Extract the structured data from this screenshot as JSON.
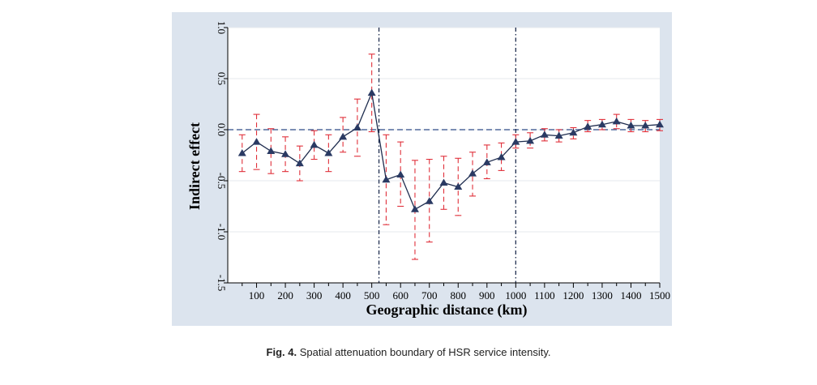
{
  "chart_data": {
    "type": "line",
    "title": "",
    "xlabel": "Geographic distance (km)",
    "ylabel": "Indirect effect",
    "xlim": [
      0,
      1500
    ],
    "ylim": [
      -1.5,
      1.0
    ],
    "xticks": [
      "100",
      "200",
      "300",
      "400",
      "500",
      "600",
      "700",
      "800",
      "900",
      "1000",
      "1100",
      "1200",
      "1300",
      "1400",
      "1500"
    ],
    "yticks": [
      "-1.5",
      "-1.0",
      "-0.5",
      "0.0",
      "0.5",
      "1.0"
    ],
    "reference_lines": {
      "horizontal_y": 0,
      "vertical_x": [
        525,
        1000
      ]
    },
    "series": [
      {
        "name": "Indirect effect",
        "x": [
          50,
          100,
          150,
          200,
          250,
          300,
          350,
          400,
          450,
          500,
          550,
          600,
          650,
          700,
          750,
          800,
          850,
          900,
          950,
          1000,
          1050,
          1100,
          1150,
          1200,
          1250,
          1300,
          1350,
          1400,
          1450,
          1500
        ],
        "values": [
          -0.23,
          -0.12,
          -0.21,
          -0.24,
          -0.33,
          -0.15,
          -0.23,
          -0.07,
          0.02,
          0.36,
          -0.49,
          -0.44,
          -0.78,
          -0.7,
          -0.52,
          -0.56,
          -0.43,
          -0.32,
          -0.27,
          -0.12,
          -0.11,
          -0.05,
          -0.06,
          -0.03,
          0.03,
          0.05,
          0.08,
          0.04,
          0.04,
          0.05
        ],
        "ci_low": [
          -0.41,
          -0.39,
          -0.43,
          -0.41,
          -0.5,
          -0.29,
          -0.41,
          -0.22,
          -0.26,
          -0.02,
          -0.93,
          -0.75,
          -1.27,
          -1.1,
          -0.78,
          -0.84,
          -0.65,
          -0.48,
          -0.4,
          -0.18,
          -0.18,
          -0.11,
          -0.12,
          -0.09,
          -0.02,
          0.0,
          0.01,
          -0.02,
          -0.02,
          -0.01
        ],
        "ci_high": [
          -0.05,
          0.15,
          0.01,
          -0.07,
          -0.16,
          -0.01,
          -0.05,
          0.12,
          0.3,
          0.74,
          -0.05,
          -0.12,
          -0.3,
          -0.29,
          -0.26,
          -0.28,
          -0.22,
          -0.15,
          -0.13,
          -0.05,
          -0.03,
          0.01,
          0.0,
          0.02,
          0.09,
          0.1,
          0.15,
          0.1,
          0.09,
          0.1
        ]
      }
    ]
  },
  "caption": {
    "label": "Fig. 4.",
    "text": "Spatial attenuation boundary of HSR service intensity."
  },
  "colors": {
    "panel_bg": "#dce4ee",
    "plot_bg": "#ffffff",
    "line": "#1f2d4f",
    "marker": "#2a3a63",
    "ci": "#e0303a",
    "zero_line": "#2c4a86",
    "vline": "#1f2d4f",
    "grid": "#e6e9ee"
  }
}
